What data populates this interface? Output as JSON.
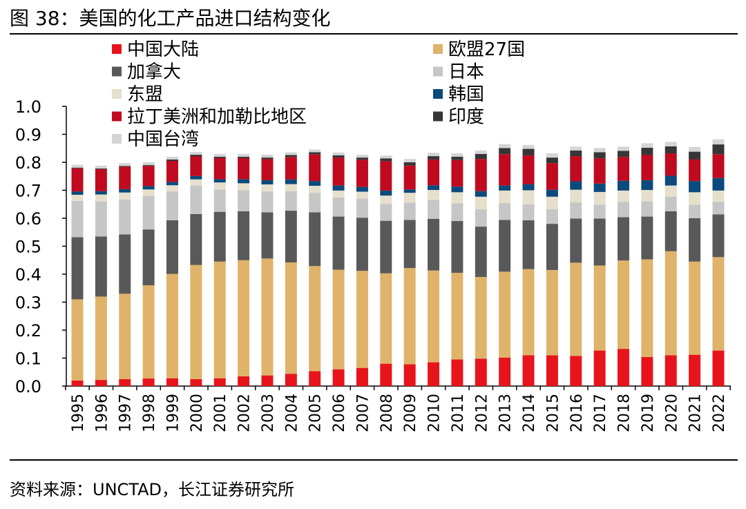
{
  "figure_title": "图 38：美国的化工产品进口结构变化",
  "source_note": "资料来源：UNCTAD，长江证券研究所",
  "chart_data": {
    "type": "bar",
    "stacked": true,
    "categories": [
      "1995",
      "1996",
      "1997",
      "1998",
      "1999",
      "2000",
      "2001",
      "2002",
      "2003",
      "2004",
      "2005",
      "2006",
      "2007",
      "2008",
      "2009",
      "2010",
      "2011",
      "2012",
      "2013",
      "2014",
      "2015",
      "2016",
      "2017",
      "2018",
      "2019",
      "2020",
      "2021",
      "2022"
    ],
    "ylim": [
      0,
      1.0
    ],
    "yticks": [
      "0.0",
      "0.1",
      "0.2",
      "0.3",
      "0.4",
      "0.5",
      "0.6",
      "0.7",
      "0.8",
      "0.9",
      "1.0"
    ],
    "grid": false,
    "legend_position": "top",
    "series": [
      {
        "name": "中国大陆",
        "color": "#e8141b",
        "values": [
          0.02,
          0.022,
          0.025,
          0.027,
          0.028,
          0.025,
          0.028,
          0.035,
          0.038,
          0.044,
          0.053,
          0.06,
          0.065,
          0.08,
          0.078,
          0.085,
          0.095,
          0.098,
          0.102,
          0.11,
          0.11,
          0.108,
          0.127,
          0.133,
          0.104,
          0.11,
          0.112,
          0.127
        ]
      },
      {
        "name": "欧盟27国",
        "color": "#dfb36a",
        "values": [
          0.29,
          0.298,
          0.305,
          0.333,
          0.373,
          0.408,
          0.417,
          0.415,
          0.418,
          0.398,
          0.376,
          0.356,
          0.347,
          0.323,
          0.344,
          0.328,
          0.31,
          0.292,
          0.307,
          0.308,
          0.305,
          0.333,
          0.304,
          0.316,
          0.349,
          0.372,
          0.333,
          0.334
        ]
      },
      {
        "name": "加拿大",
        "color": "#595959",
        "values": [
          0.222,
          0.215,
          0.212,
          0.2,
          0.192,
          0.182,
          0.178,
          0.175,
          0.165,
          0.185,
          0.192,
          0.19,
          0.19,
          0.188,
          0.172,
          0.185,
          0.185,
          0.18,
          0.185,
          0.175,
          0.165,
          0.158,
          0.168,
          0.155,
          0.153,
          0.143,
          0.155,
          0.153
        ]
      },
      {
        "name": "日本",
        "color": "#c6c6c6",
        "values": [
          0.13,
          0.125,
          0.125,
          0.12,
          0.103,
          0.102,
          0.08,
          0.075,
          0.075,
          0.07,
          0.07,
          0.068,
          0.068,
          0.06,
          0.062,
          0.068,
          0.063,
          0.062,
          0.06,
          0.057,
          0.052,
          0.058,
          0.05,
          0.055,
          0.055,
          0.052,
          0.048,
          0.045
        ]
      },
      {
        "name": "东盟",
        "color": "#e5dfcc",
        "values": [
          0.022,
          0.025,
          0.025,
          0.023,
          0.022,
          0.022,
          0.025,
          0.025,
          0.025,
          0.025,
          0.025,
          0.025,
          0.025,
          0.03,
          0.035,
          0.035,
          0.04,
          0.045,
          0.045,
          0.05,
          0.045,
          0.045,
          0.045,
          0.04,
          0.04,
          0.04,
          0.045,
          0.04
        ]
      },
      {
        "name": "韩国",
        "color": "#0b4a7c",
        "values": [
          0.012,
          0.012,
          0.012,
          0.012,
          0.012,
          0.012,
          0.012,
          0.015,
          0.015,
          0.017,
          0.017,
          0.018,
          0.017,
          0.018,
          0.012,
          0.017,
          0.02,
          0.02,
          0.018,
          0.022,
          0.025,
          0.03,
          0.03,
          0.035,
          0.035,
          0.035,
          0.04,
          0.045
        ]
      },
      {
        "name": "拉丁美洲和加勒比地区",
        "color": "#c00a1f",
        "values": [
          0.082,
          0.078,
          0.08,
          0.072,
          0.075,
          0.07,
          0.075,
          0.075,
          0.075,
          0.08,
          0.095,
          0.1,
          0.097,
          0.105,
          0.085,
          0.092,
          0.095,
          0.115,
          0.112,
          0.103,
          0.095,
          0.09,
          0.09,
          0.085,
          0.09,
          0.08,
          0.077,
          0.085
        ]
      },
      {
        "name": "印度",
        "color": "#363636",
        "values": [
          0.003,
          0.003,
          0.003,
          0.003,
          0.005,
          0.006,
          0.005,
          0.005,
          0.006,
          0.007,
          0.008,
          0.008,
          0.008,
          0.01,
          0.012,
          0.012,
          0.012,
          0.018,
          0.022,
          0.023,
          0.02,
          0.02,
          0.022,
          0.022,
          0.026,
          0.025,
          0.028,
          0.035
        ]
      },
      {
        "name": "中国台湾",
        "color": "#d4d4d4",
        "values": [
          0.01,
          0.01,
          0.01,
          0.01,
          0.01,
          0.01,
          0.01,
          0.01,
          0.01,
          0.01,
          0.01,
          0.01,
          0.01,
          0.01,
          0.012,
          0.012,
          0.012,
          0.012,
          0.014,
          0.014,
          0.015,
          0.014,
          0.015,
          0.015,
          0.016,
          0.016,
          0.017,
          0.018
        ]
      }
    ]
  }
}
